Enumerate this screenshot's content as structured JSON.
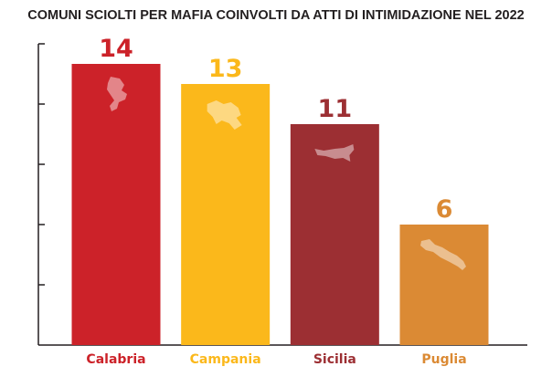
{
  "chart_data": {
    "type": "bar",
    "title": "COMUNI SCIOLTI PER MAFIA COINVOLTI DA ATTI DI INTIMIDAZIONE NEL 2022",
    "xlabel": "",
    "ylabel": "",
    "categories": [
      "Calabria",
      "Campania",
      "Sicilia",
      "Puglia"
    ],
    "values": [
      14,
      13,
      11,
      6
    ],
    "ylim": [
      0,
      15
    ],
    "grid": false,
    "legend": "none",
    "colors": [
      "#cc2229",
      "#fbb81b",
      "#9c2f33",
      "#db8a34"
    ],
    "region_icons": [
      "calabria-map-icon",
      "campania-map-icon",
      "sicilia-map-icon",
      "puglia-map-icon"
    ]
  }
}
